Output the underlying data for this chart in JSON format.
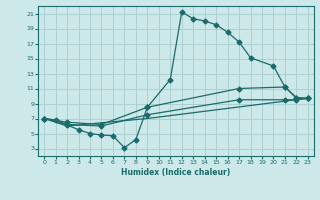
{
  "xlabel": "Humidex (Indice chaleur)",
  "bg_color": "#cce8e8",
  "grid_color": "#aacccc",
  "line_color": "#1a6b6b",
  "xlim": [
    -0.5,
    23.5
  ],
  "ylim": [
    2,
    22
  ],
  "xticks": [
    0,
    1,
    2,
    3,
    4,
    5,
    6,
    7,
    8,
    9,
    10,
    11,
    12,
    13,
    14,
    15,
    16,
    17,
    18,
    19,
    20,
    21,
    22,
    23
  ],
  "yticks": [
    3,
    5,
    7,
    9,
    11,
    13,
    15,
    17,
    19,
    21
  ],
  "line1_x": [
    0,
    1,
    3,
    4,
    5,
    6,
    7,
    8,
    9,
    11,
    12,
    13,
    14,
    15,
    16,
    17,
    18,
    20,
    21,
    22,
    23
  ],
  "line1_y": [
    7,
    6.8,
    5.5,
    5,
    4.8,
    4.7,
    3.1,
    4.2,
    8.5,
    12.2,
    21.2,
    20.3,
    20.0,
    19.5,
    18.5,
    17.2,
    15.1,
    14.0,
    11.2,
    9.7,
    9.7
  ],
  "line2_x": [
    0,
    2,
    5,
    9,
    17,
    21,
    22,
    23
  ],
  "line2_y": [
    7,
    6.5,
    6.2,
    8.5,
    11.0,
    11.2,
    9.8,
    9.7
  ],
  "line3_x": [
    0,
    2,
    5,
    9,
    17,
    21,
    22,
    23
  ],
  "line3_y": [
    7,
    6.2,
    6.0,
    7.5,
    9.5,
    9.5,
    9.5,
    9.7
  ],
  "line4_x": [
    0,
    2,
    9,
    23
  ],
  "line4_y": [
    7,
    6.0,
    7.0,
    9.7
  ]
}
